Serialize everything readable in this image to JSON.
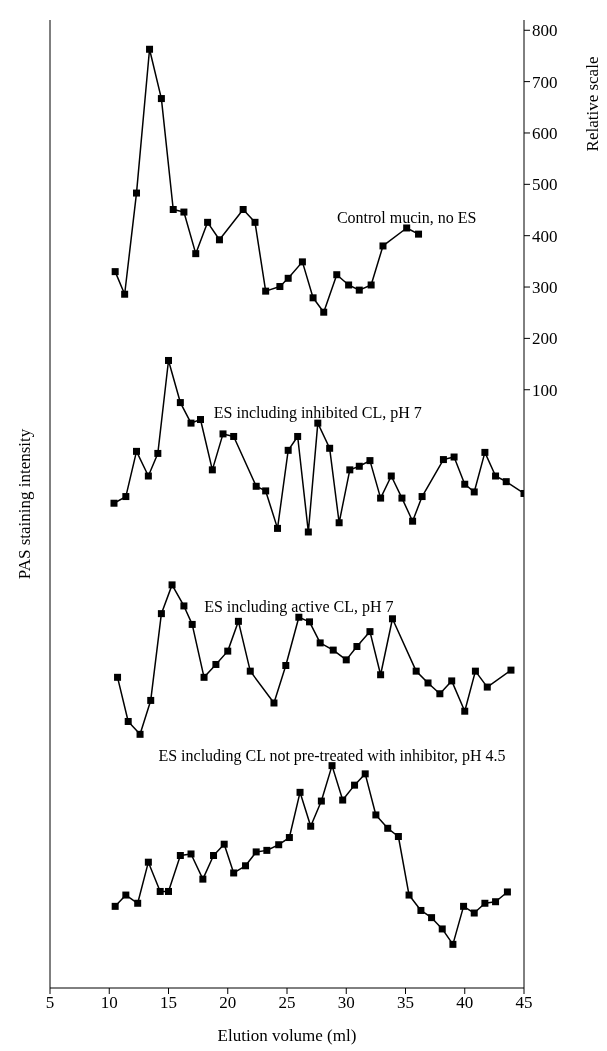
{
  "chart_data": {
    "type": "line",
    "xlabel": "Elution volume (ml)",
    "ylabel": "PAS staining intensity",
    "y2label": "Relative scale",
    "xlim": [
      5,
      45
    ],
    "xticks": [
      5,
      10,
      15,
      20,
      25,
      30,
      35,
      40,
      45
    ],
    "y2lim": [
      -1065,
      820
    ],
    "y2ticks": [
      100,
      200,
      300,
      400,
      500,
      600,
      700,
      800
    ],
    "marker": "square",
    "series": [
      {
        "name": "Control mucin, no ES",
        "color": "#000000",
        "axis": "y2",
        "x": [
          10.5,
          11.3,
          12.3,
          13.4,
          14.4,
          15.4,
          16.3,
          17.3,
          18.3,
          19.3,
          21.3,
          22.3,
          23.2,
          24.4,
          25.1,
          26.3,
          27.2,
          28.1,
          29.2,
          30.2,
          31.1,
          32.1,
          33.1,
          35.1,
          36.1
        ],
        "values": [
          330,
          286,
          483,
          763,
          667,
          451,
          446,
          365,
          426,
          392,
          451,
          426,
          292,
          301,
          317,
          349,
          279,
          251,
          324,
          304,
          294,
          304,
          380,
          415,
          403
        ]
      },
      {
        "name": "ES including inhibited CL, pH 7",
        "color": "#000000",
        "axis": "y2",
        "x": [
          10.4,
          11.4,
          12.3,
          13.3,
          14.1,
          15.0,
          16.0,
          16.9,
          17.7,
          18.7,
          19.6,
          20.5,
          22.4,
          23.2,
          24.2,
          25.1,
          25.9,
          26.8,
          27.6,
          28.6,
          29.4,
          30.3,
          31.1,
          32.0,
          32.9,
          33.8,
          34.7,
          35.6,
          36.4,
          38.2,
          39.1,
          40.0,
          40.8,
          41.7,
          42.6,
          43.5,
          45.0
        ],
        "values": [
          -121,
          -108,
          -20,
          -68,
          -24,
          157,
          75,
          35,
          42,
          -56,
          14,
          9,
          -88,
          -97,
          -170,
          -18,
          9,
          -177,
          35,
          -14,
          -159,
          -56,
          -49,
          -38,
          -111,
          -68,
          -111,
          -156,
          -108,
          -36,
          -31,
          -84,
          -99,
          -22,
          -68,
          -79,
          -102
        ]
      },
      {
        "name": "ES including active CL, pH 7",
        "color": "#000000",
        "axis": "y2",
        "x": [
          10.7,
          11.6,
          12.6,
          13.5,
          14.4,
          15.3,
          16.3,
          17.0,
          18.0,
          19.0,
          20.0,
          20.9,
          21.9,
          23.9,
          24.9,
          26.0,
          26.9,
          27.8,
          28.9,
          30.0,
          30.9,
          32.0,
          32.9,
          33.9,
          35.9,
          36.9,
          37.9,
          38.9,
          40.0,
          40.9,
          41.9,
          43.9
        ],
        "values": [
          -460,
          -546,
          -571,
          -505,
          -336,
          -280,
          -321,
          -357,
          -460,
          -435,
          -409,
          -351,
          -448,
          -510,
          -437,
          -343,
          -352,
          -393,
          -407,
          -426,
          -400,
          -371,
          -455,
          -346,
          -448,
          -471,
          -492,
          -467,
          -526,
          -448,
          -479,
          -446
        ]
      },
      {
        "name": "ES including CL not pre-treated with inhibitor, pH 4.5",
        "color": "#000000",
        "axis": "y2",
        "x": [
          10.5,
          11.4,
          12.4,
          13.3,
          14.3,
          15.0,
          16.0,
          16.9,
          17.9,
          18.8,
          19.7,
          20.5,
          21.5,
          22.4,
          23.3,
          24.3,
          25.2,
          26.1,
          27.0,
          27.9,
          28.8,
          29.7,
          30.7,
          31.6,
          32.5,
          33.5,
          34.4,
          35.3,
          36.3,
          37.2,
          38.1,
          39.0,
          39.9,
          40.8,
          41.7,
          42.6,
          43.6
        ],
        "values": [
          -906,
          -884,
          -900,
          -820,
          -877,
          -877,
          -807,
          -804,
          -853,
          -807,
          -785,
          -841,
          -827,
          -800,
          -797,
          -786,
          -772,
          -684,
          -750,
          -701,
          -632,
          -699,
          -670,
          -648,
          -728,
          -754,
          -770,
          -884,
          -914,
          -928,
          -950,
          -980,
          -906,
          -919,
          -900,
          -897,
          -878
        ]
      }
    ]
  }
}
